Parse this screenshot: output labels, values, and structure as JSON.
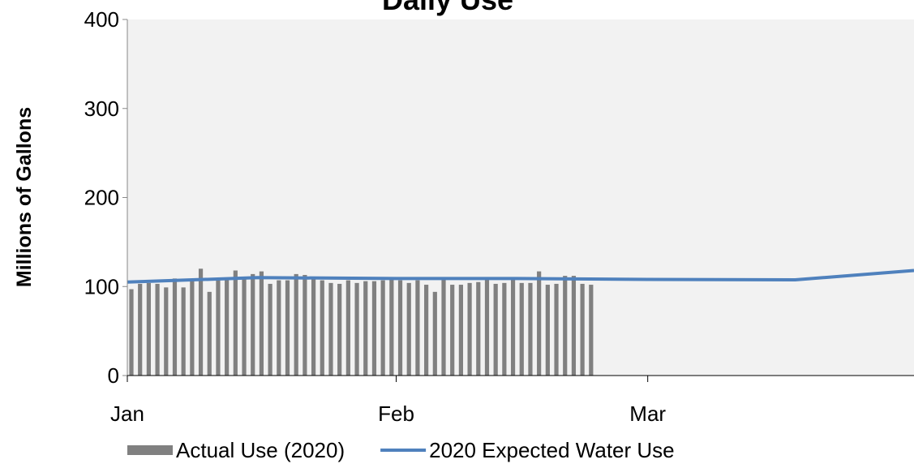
{
  "chart_data": {
    "type": "bar-line",
    "title": "Daily Use",
    "y_label": "Millions of Gallons",
    "xlim": [
      0,
      90.7
    ],
    "xticks": [
      {
        "value": 0,
        "label": "Jan"
      },
      {
        "value": 31,
        "label": "Feb"
      },
      {
        "value": 60,
        "label": "Mar"
      }
    ],
    "ylim": [
      0,
      400
    ],
    "yticks": [
      0,
      100,
      200,
      300,
      400
    ],
    "series": [
      {
        "name": "Actual Use (2020)",
        "type": "bar",
        "color": "#808080",
        "x": [
          0,
          1,
          2,
          3,
          4,
          5,
          6,
          7,
          8,
          9,
          10,
          11,
          12,
          13,
          14,
          15,
          16,
          17,
          18,
          19,
          20,
          21,
          22,
          23,
          24,
          25,
          26,
          27,
          28,
          29,
          30,
          31,
          32,
          33,
          34,
          35,
          36,
          37,
          38,
          39,
          40,
          41,
          42,
          43,
          44,
          45,
          46,
          47,
          48,
          49,
          50,
          51,
          52,
          53
        ],
        "values": [
          97,
          103,
          104,
          103,
          99,
          109,
          99,
          107,
          120,
          94,
          108,
          110,
          118,
          111,
          114,
          117,
          103,
          107,
          107,
          114,
          113,
          110,
          107,
          104,
          103,
          107,
          104,
          106,
          106,
          107,
          108,
          107,
          104,
          107,
          102,
          94,
          108,
          102,
          102,
          104,
          105,
          108,
          103,
          104,
          108,
          104,
          104,
          117,
          102,
          103,
          112,
          112,
          103,
          102
        ]
      },
      {
        "name": "2020 Expected Water Use",
        "type": "line",
        "color": "#4f81bd",
        "x": [
          0,
          15,
          31,
          45,
          60,
          77,
          90.7
        ],
        "values": [
          105,
          110,
          109,
          109,
          108,
          107.5,
          118
        ]
      }
    ]
  }
}
